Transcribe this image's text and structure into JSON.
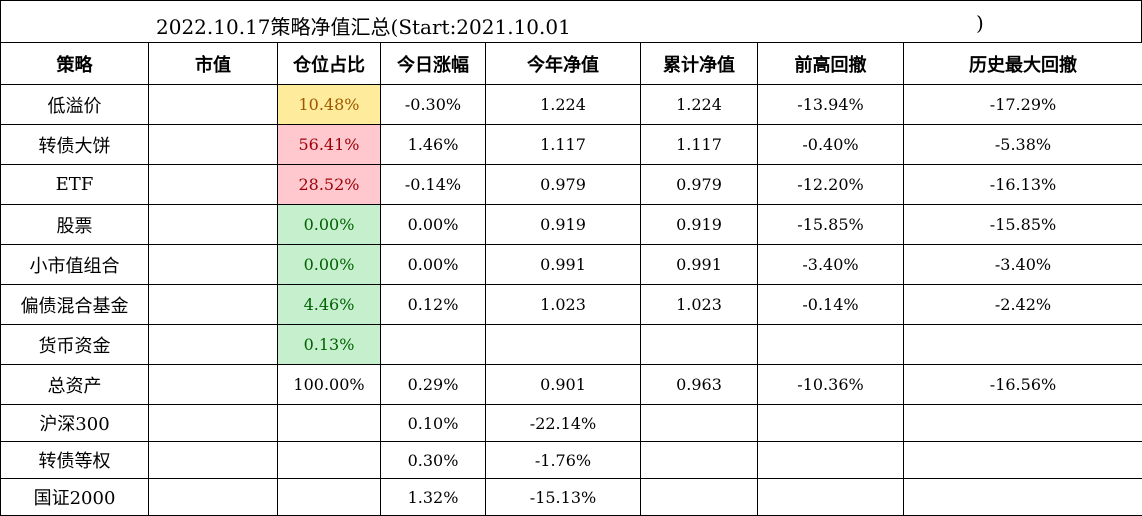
{
  "title": [
    "2022.10.17策略净值汇总(Start:2021.10.01",
    ")"
  ],
  "table": {
    "header": [
      "策略",
      "市值",
      "仓位占比",
      "今日涨幅",
      "今年净值",
      "累计净值",
      "前高回撤",
      "历史最大回撤"
    ],
    "rows": [
      [
        "低溢价",
        null,
        "10.48%",
        "-0.30%",
        "1.224",
        "1.224",
        "-13.94%",
        "-17.29%"
      ],
      [
        "转债大饼",
        null,
        "56.41%",
        "1.46%",
        "1.117",
        "1.117",
        "-0.40%",
        "-5.38%"
      ],
      [
        "ETF",
        null,
        "28.52%",
        "-0.14%",
        "0.979",
        "0.979",
        "-12.20%",
        "-16.13%"
      ],
      [
        "股票",
        null,
        "0.00%",
        "0.00%",
        "0.919",
        "0.919",
        "-15.85%",
        "-15.85%"
      ],
      [
        "小市值组合",
        null,
        "0.00%",
        "0.00%",
        "0.991",
        "0.991",
        "-3.40%",
        "-3.40%"
      ],
      [
        "偏债混合基金",
        null,
        "4.46%",
        "0.12%",
        "1.023",
        "1.023",
        "-0.14%",
        "-2.42%"
      ],
      [
        "货币资金",
        null,
        "0.13%",
        null,
        null,
        null,
        null,
        null
      ],
      [
        "总资产",
        null,
        "100.00%",
        "0.29%",
        "0.901",
        "0.963",
        "-10.36%",
        "-16.56%"
      ],
      [
        "沪深300",
        null,
        null,
        "0.10%",
        "-22.14%",
        null,
        null,
        null
      ],
      [
        "转债等权",
        null,
        null,
        "0.30%",
        "-1.76%",
        null,
        null,
        null
      ],
      [
        "国证2000",
        null,
        null,
        "1.32%",
        "-15.13%",
        null,
        null,
        null
      ]
    ],
    "position_colors": [
      {
        "bg": "#ffeb9c",
        "fg": "#9c5700"
      },
      {
        "bg": "#ffc7ce",
        "fg": "#9c0006"
      },
      {
        "bg": "#ffc7ce",
        "fg": "#9c0006"
      },
      {
        "bg": "#c6efce",
        "fg": "#006100"
      },
      {
        "bg": "#c6efce",
        "fg": "#006100"
      },
      {
        "bg": "#c6efce",
        "fg": "#006100"
      },
      {
        "bg": "#c6efce",
        "fg": "#006100"
      },
      null,
      null,
      null,
      null
    ]
  }
}
